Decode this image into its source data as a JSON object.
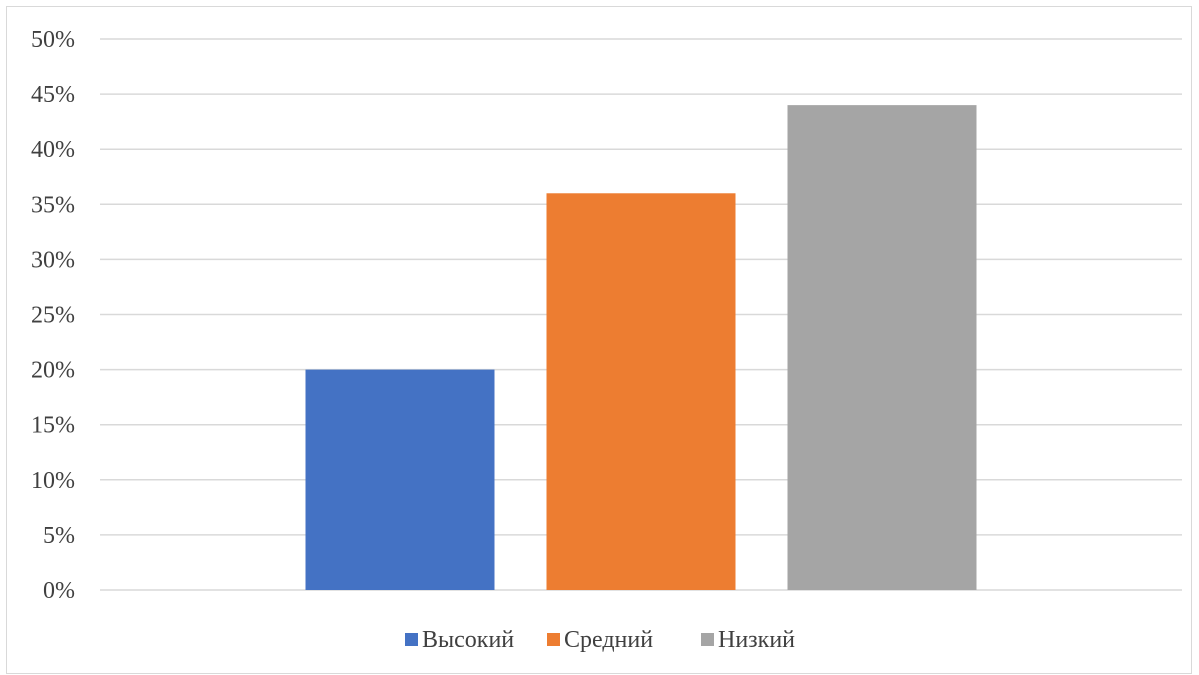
{
  "chart_data": {
    "type": "bar",
    "title": "",
    "xlabel": "",
    "ylabel": "",
    "ylim": [
      0,
      50
    ],
    "y_ticks": [
      "0%",
      "5%",
      "10%",
      "15%",
      "20%",
      "25%",
      "30%",
      "35%",
      "40%",
      "45%",
      "50%"
    ],
    "y_tick_values": [
      0,
      5,
      10,
      15,
      20,
      25,
      30,
      35,
      40,
      45,
      50
    ],
    "grid": true,
    "legend_position": "bottom",
    "series": [
      {
        "name": "Высокий",
        "values": [
          20
        ],
        "color": "#4472c4"
      },
      {
        "name": "Средний",
        "values": [
          36
        ],
        "color": "#ed7d31"
      },
      {
        "name": "Низкий",
        "values": [
          44
        ],
        "color": "#a5a5a5"
      }
    ]
  }
}
